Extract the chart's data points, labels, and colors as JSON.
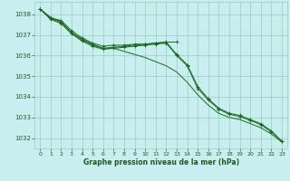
{
  "background_color": "#c8eef0",
  "grid_color": "#99ccbb",
  "line_color": "#1a6b1a",
  "marker_color": "#1a6b1a",
  "xlabel": "Graphe pression niveau de la mer (hPa)",
  "xlabel_color": "#1a5c1a",
  "xlim": [
    -0.5,
    23.5
  ],
  "ylim": [
    1031.5,
    1038.6
  ],
  "yticks": [
    1032,
    1033,
    1034,
    1035,
    1036,
    1037,
    1038
  ],
  "xticks": [
    0,
    1,
    2,
    3,
    4,
    5,
    6,
    7,
    8,
    9,
    10,
    11,
    12,
    13,
    14,
    15,
    16,
    17,
    18,
    19,
    20,
    21,
    22,
    23
  ],
  "series": [
    {
      "x": [
        0,
        1,
        2,
        3,
        4,
        5,
        6,
        7,
        8,
        9,
        10,
        11,
        12,
        13,
        14,
        15,
        16,
        17,
        18,
        19,
        20,
        21,
        22,
        23
      ],
      "y": [
        1038.25,
        1037.85,
        1037.65,
        1037.1,
        1036.8,
        1036.55,
        1036.35,
        1036.35,
        1036.2,
        1036.05,
        1035.9,
        1035.7,
        1035.5,
        1035.2,
        1034.7,
        1034.1,
        1033.6,
        1033.2,
        1033.0,
        1032.9,
        1032.7,
        1032.5,
        1032.2,
        1031.8
      ],
      "has_markers": false
    },
    {
      "x": [
        0,
        1,
        2,
        3,
        4,
        5,
        6,
        7,
        8,
        9,
        10,
        11,
        12,
        13,
        14,
        15,
        16,
        17,
        18,
        19,
        20,
        21,
        22,
        23
      ],
      "y": [
        1038.25,
        1037.75,
        1037.55,
        1037.05,
        1036.7,
        1036.45,
        1036.3,
        1036.35,
        1036.4,
        1036.45,
        1036.5,
        1036.55,
        1036.6,
        1036.0,
        1035.5,
        1034.4,
        1033.85,
        1033.4,
        1033.15,
        1033.05,
        1032.85,
        1032.65,
        1032.3,
        1031.85
      ],
      "has_markers": true
    },
    {
      "x": [
        0,
        1,
        2,
        3,
        4,
        5,
        6,
        7,
        8,
        9,
        10,
        11,
        12,
        13,
        14,
        15,
        16,
        17,
        18,
        19,
        20,
        21,
        22,
        23
      ],
      "y": [
        1038.25,
        1037.8,
        1037.6,
        1037.1,
        1036.75,
        1036.5,
        1036.35,
        1036.4,
        1036.45,
        1036.5,
        1036.55,
        1036.6,
        1036.65,
        1036.05,
        1035.55,
        1034.5,
        1033.9,
        1033.45,
        1033.2,
        1033.1,
        1032.9,
        1032.7,
        1032.35,
        1031.85
      ],
      "has_markers": true
    },
    {
      "x": [
        0,
        1,
        2,
        3,
        4,
        5,
        6,
        7,
        8,
        9,
        10,
        11,
        12,
        13
      ],
      "y": [
        1038.25,
        1037.8,
        1037.7,
        1037.2,
        1036.85,
        1036.6,
        1036.45,
        1036.5,
        1036.5,
        1036.55,
        1036.55,
        1036.6,
        1036.65,
        1036.65
      ],
      "has_markers": true
    }
  ]
}
